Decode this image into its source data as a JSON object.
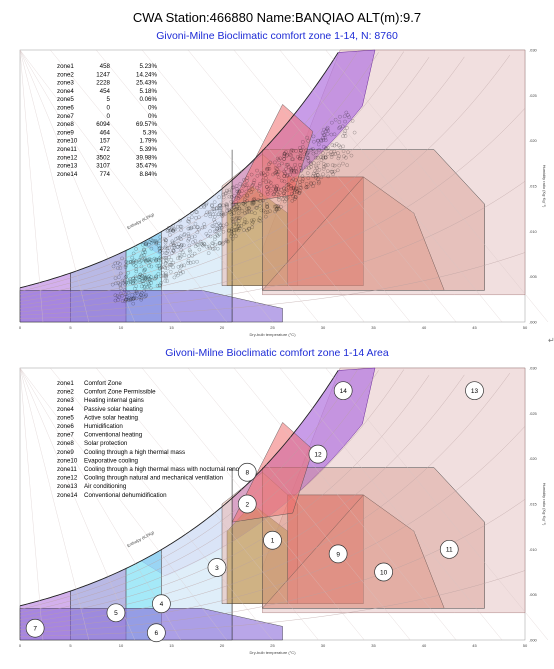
{
  "title": "CWA Station:466880 Name:BANQIAO ALT(m):9.7",
  "chart_data": [
    {
      "type": "scatter",
      "title": "Givoni-Milne Bioclimatic comfort zone 1-14, N: 8760",
      "xlabel": "Dry-bulb temperature (°C)",
      "ylabel": "Humidity ratio (Kg·Kg⁻¹)",
      "xlim": [
        0,
        50
      ],
      "ylim": [
        0,
        0.03
      ],
      "x_ticks": [
        "0",
        "5",
        "10",
        "15",
        "20",
        "25",
        "30",
        "35",
        "40",
        "45",
        "50"
      ],
      "y_ticks": [
        ".000",
        ".005",
        ".010",
        ".015",
        ".020",
        ".025",
        ".030"
      ],
      "rh_labels": [
        "10",
        "20",
        "30",
        "40",
        "50",
        "60",
        "70",
        "80",
        "90",
        "100%"
      ],
      "wet_bulb_label": "Enthalpy (KJ/Kg)",
      "zone_stats": [
        {
          "zone": "zone1",
          "count": "458",
          "pct": "5.23%"
        },
        {
          "zone": "zone2",
          "count": "1247",
          "pct": "14.24%"
        },
        {
          "zone": "zone3",
          "count": "2228",
          "pct": "25.43%"
        },
        {
          "zone": "zone4",
          "count": "454",
          "pct": "5.18%"
        },
        {
          "zone": "zone5",
          "count": "5",
          "pct": "0.06%"
        },
        {
          "zone": "zone6",
          "count": "0",
          "pct": "0%"
        },
        {
          "zone": "zone7",
          "count": "0",
          "pct": "0%"
        },
        {
          "zone": "zone8",
          "count": "6094",
          "pct": "69.57%"
        },
        {
          "zone": "zone9",
          "count": "464",
          "pct": "5.3%"
        },
        {
          "zone": "zone10",
          "count": "157",
          "pct": "1.79%"
        },
        {
          "zone": "zone11",
          "count": "472",
          "pct": "5.39%"
        },
        {
          "zone": "zone12",
          "count": "3502",
          "pct": "39.98%"
        },
        {
          "zone": "zone13",
          "count": "3107",
          "pct": "35.47%"
        },
        {
          "zone": "zone14",
          "count": "774",
          "pct": "8.84%"
        }
      ],
      "scatter_summary": "hourly points concentrated between 10-32 °C and 0.006-0.022 Kg/Kg"
    },
    {
      "type": "area",
      "title": "Givoni-Milne Bioclimatic comfort zone 1-14 Area",
      "xlabel": "Dry-bulb temperature (°C)",
      "ylabel": "Humidity ratio (Kg·Kg⁻¹)",
      "xlim": [
        0,
        50
      ],
      "ylim": [
        0,
        0.03
      ],
      "legend": [
        {
          "zone": "zone1",
          "name": "Comfort Zone"
        },
        {
          "zone": "zone2",
          "name": "Comfort Zone Permissible"
        },
        {
          "zone": "zone3",
          "name": "Heating internal gains"
        },
        {
          "zone": "zone4",
          "name": "Passive solar heating"
        },
        {
          "zone": "zone5",
          "name": "Active solar heating"
        },
        {
          "zone": "zone6",
          "name": "Humidification"
        },
        {
          "zone": "zone7",
          "name": "Conventional heating"
        },
        {
          "zone": "zone8",
          "name": "Solar protection"
        },
        {
          "zone": "zone9",
          "name": "Cooling through a high thermal mass"
        },
        {
          "zone": "zone10",
          "name": "Evaporative cooling"
        },
        {
          "zone": "zone11",
          "name": "Cooling through a high thermal mass with nocturnal renovation"
        },
        {
          "zone": "zone12",
          "name": "Cooling through natural and mechanical ventilation"
        },
        {
          "zone": "zone13",
          "name": "Air conditioning"
        },
        {
          "zone": "zone14",
          "name": "Conventional dehumidification"
        }
      ],
      "zone_markers": [
        "1",
        "2",
        "3",
        "4",
        "5",
        "6",
        "7",
        "8",
        "9",
        "10",
        "11",
        "12",
        "13",
        "14"
      ]
    }
  ],
  "colors": {
    "title_blue": "#1d2bd6",
    "zone_purple": "#b57be0",
    "zone_cyan": "#8fe4f6",
    "zone_lightblue": "#dcecf8",
    "zone_olive": "#9c9c3c",
    "zone_red": "#e2584b",
    "zone_salmon": "#e8a090",
    "zone_pink": "#ecd4d4"
  }
}
